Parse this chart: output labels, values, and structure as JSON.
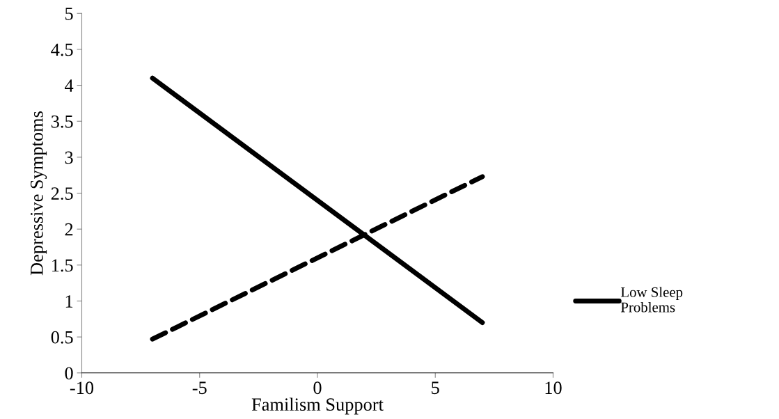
{
  "chart_data": {
    "type": "line",
    "xlabel": "Familism Support",
    "ylabel": "Depressive Symptoms",
    "xlim": [
      -10,
      10
    ],
    "xticks": [
      -10,
      -5,
      0,
      5,
      10
    ],
    "ylim": [
      0,
      5
    ],
    "yticks": [
      0,
      0.5,
      1,
      1.5,
      2,
      2.5,
      3,
      3.5,
      4,
      4.5,
      5
    ],
    "x": [
      -7,
      7
    ],
    "grid": false,
    "legend": "right",
    "marker": "none",
    "series": [
      {
        "name": "Low Sleep Problems",
        "color": "#000000",
        "values": [
          4.1,
          0.7
        ],
        "line_style": "solid"
      },
      {
        "color": "#000000",
        "values": [
          0.47,
          2.73
        ],
        "line_style": "dashed"
      }
    ]
  }
}
